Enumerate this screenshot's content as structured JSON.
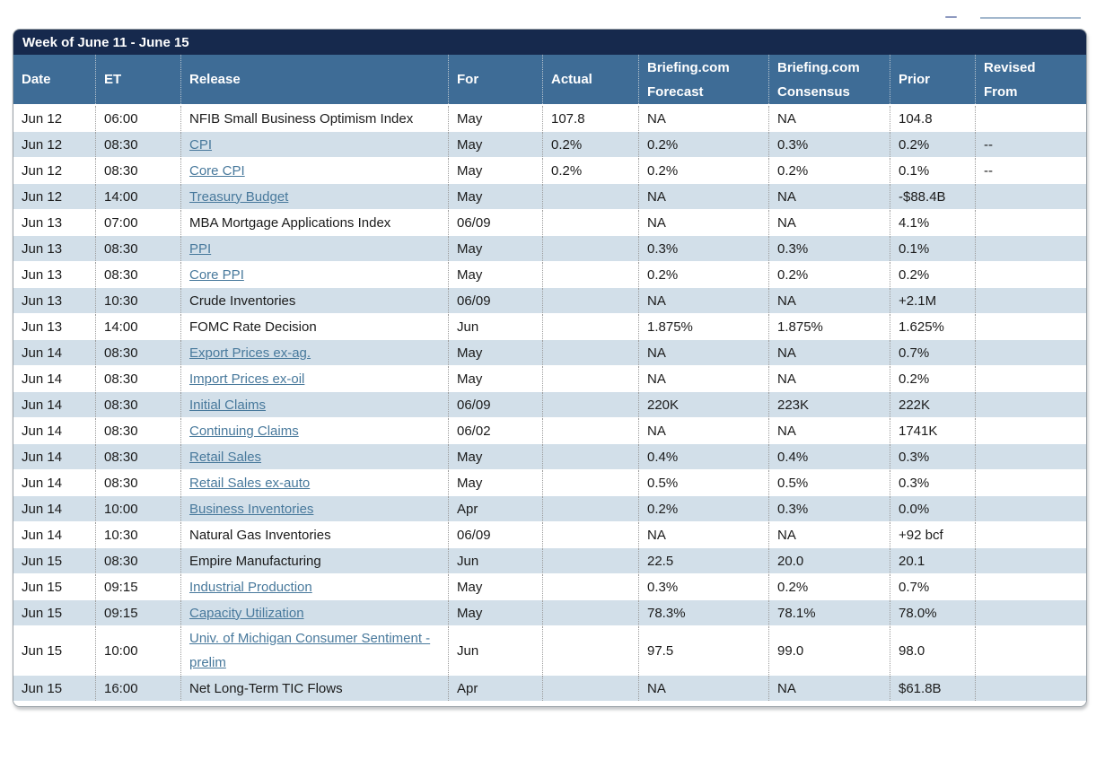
{
  "title": "Week of June 11 - June 15",
  "colors": {
    "title_bar": "#16294D",
    "header": "#3E6C96",
    "row_alt": "#D2DFE9",
    "link": "#48799C",
    "text": "#1B1B1B"
  },
  "columns": [
    {
      "key": "date",
      "label": "Date"
    },
    {
      "key": "et",
      "label": "ET"
    },
    {
      "key": "release",
      "label": "Release"
    },
    {
      "key": "for",
      "label": "For"
    },
    {
      "key": "actual",
      "label": "Actual"
    },
    {
      "key": "forecast",
      "label": "Briefing.com Forecast"
    },
    {
      "key": "consensus",
      "label": "Briefing.com Consensus"
    },
    {
      "key": "prior",
      "label": "Prior"
    },
    {
      "key": "revised",
      "label": "Revised From"
    }
  ],
  "rows": [
    {
      "date": "Jun 12",
      "et": "06:00",
      "release": "NFIB Small Business Optimism Index",
      "is_link": false,
      "for": "May",
      "actual": "107.8",
      "forecast": "NA",
      "consensus": "NA",
      "prior": "104.8",
      "revised": ""
    },
    {
      "date": "Jun 12",
      "et": "08:30",
      "release": "CPI",
      "is_link": true,
      "for": "May",
      "actual": "0.2%",
      "forecast": "0.2%",
      "consensus": "0.3%",
      "prior": "0.2%",
      "revised": "--"
    },
    {
      "date": "Jun 12",
      "et": "08:30",
      "release": "Core CPI",
      "is_link": true,
      "for": "May",
      "actual": "0.2%",
      "forecast": "0.2%",
      "consensus": "0.2%",
      "prior": "0.1%",
      "revised": "--"
    },
    {
      "date": "Jun 12",
      "et": "14:00",
      "release": "Treasury Budget",
      "is_link": true,
      "for": "May",
      "actual": "",
      "forecast": "NA",
      "consensus": "NA",
      "prior": "-$88.4B",
      "revised": ""
    },
    {
      "date": "Jun 13",
      "et": "07:00",
      "release": "MBA Mortgage Applications Index",
      "is_link": false,
      "for": "06/09",
      "actual": "",
      "forecast": "NA",
      "consensus": "NA",
      "prior": "4.1%",
      "revised": ""
    },
    {
      "date": "Jun 13",
      "et": "08:30",
      "release": "PPI",
      "is_link": true,
      "for": "May",
      "actual": "",
      "forecast": "0.3%",
      "consensus": "0.3%",
      "prior": "0.1%",
      "revised": ""
    },
    {
      "date": "Jun 13",
      "et": "08:30",
      "release": "Core PPI",
      "is_link": true,
      "for": "May",
      "actual": "",
      "forecast": "0.2%",
      "consensus": "0.2%",
      "prior": "0.2%",
      "revised": ""
    },
    {
      "date": "Jun 13",
      "et": "10:30",
      "release": "Crude Inventories",
      "is_link": false,
      "for": "06/09",
      "actual": "",
      "forecast": "NA",
      "consensus": "NA",
      "prior": "+2.1M",
      "revised": ""
    },
    {
      "date": "Jun 13",
      "et": "14:00",
      "release": "FOMC Rate Decision",
      "is_link": false,
      "for": "Jun",
      "actual": "",
      "forecast": "1.875%",
      "consensus": "1.875%",
      "prior": "1.625%",
      "revised": ""
    },
    {
      "date": "Jun 14",
      "et": "08:30",
      "release": "Export Prices ex-ag.",
      "is_link": true,
      "for": "May",
      "actual": "",
      "forecast": "NA",
      "consensus": "NA",
      "prior": "0.7%",
      "revised": ""
    },
    {
      "date": "Jun 14",
      "et": "08:30",
      "release": "Import Prices ex-oil",
      "is_link": true,
      "for": "May",
      "actual": "",
      "forecast": "NA",
      "consensus": "NA",
      "prior": "0.2%",
      "revised": ""
    },
    {
      "date": "Jun 14",
      "et": "08:30",
      "release": "Initial Claims",
      "is_link": true,
      "for": "06/09",
      "actual": "",
      "forecast": "220K",
      "consensus": "223K",
      "prior": "222K",
      "revised": ""
    },
    {
      "date": "Jun 14",
      "et": "08:30",
      "release": "Continuing Claims",
      "is_link": true,
      "for": "06/02",
      "actual": "",
      "forecast": "NA",
      "consensus": "NA",
      "prior": "1741K",
      "revised": ""
    },
    {
      "date": "Jun 14",
      "et": "08:30",
      "release": "Retail Sales",
      "is_link": true,
      "for": "May",
      "actual": "",
      "forecast": "0.4%",
      "consensus": "0.4%",
      "prior": "0.3%",
      "revised": ""
    },
    {
      "date": "Jun 14",
      "et": "08:30",
      "release": "Retail Sales ex-auto",
      "is_link": true,
      "for": "May",
      "actual": "",
      "forecast": "0.5%",
      "consensus": "0.5%",
      "prior": "0.3%",
      "revised": ""
    },
    {
      "date": "Jun 14",
      "et": "10:00",
      "release": "Business Inventories",
      "is_link": true,
      "for": "Apr",
      "actual": "",
      "forecast": "0.2%",
      "consensus": "0.3%",
      "prior": "0.0%",
      "revised": ""
    },
    {
      "date": "Jun 14",
      "et": "10:30",
      "release": "Natural Gas Inventories",
      "is_link": false,
      "for": "06/09",
      "actual": "",
      "forecast": "NA",
      "consensus": "NA",
      "prior": "+92 bcf",
      "revised": ""
    },
    {
      "date": "Jun 15",
      "et": "08:30",
      "release": "Empire Manufacturing",
      "is_link": false,
      "for": "Jun",
      "actual": "",
      "forecast": "22.5",
      "consensus": "20.0",
      "prior": "20.1",
      "revised": ""
    },
    {
      "date": "Jun 15",
      "et": "09:15",
      "release": "Industrial Production",
      "is_link": true,
      "for": "May",
      "actual": "",
      "forecast": "0.3%",
      "consensus": "0.2%",
      "prior": "0.7%",
      "revised": ""
    },
    {
      "date": "Jun 15",
      "et": "09:15",
      "release": "Capacity Utilization",
      "is_link": true,
      "for": "May",
      "actual": "",
      "forecast": "78.3%",
      "consensus": "78.1%",
      "prior": "78.0%",
      "revised": ""
    },
    {
      "date": "Jun 15",
      "et": "10:00",
      "release": "Univ. of Michigan Consumer Sentiment - prelim",
      "is_link": true,
      "for": "Jun",
      "actual": "",
      "forecast": "97.5",
      "consensus": "99.0",
      "prior": "98.0",
      "revised": ""
    },
    {
      "date": "Jun 15",
      "et": "16:00",
      "release": "Net Long-Term TIC Flows",
      "is_link": false,
      "for": "Apr",
      "actual": "",
      "forecast": "NA",
      "consensus": "NA",
      "prior": "$61.8B",
      "revised": ""
    }
  ]
}
